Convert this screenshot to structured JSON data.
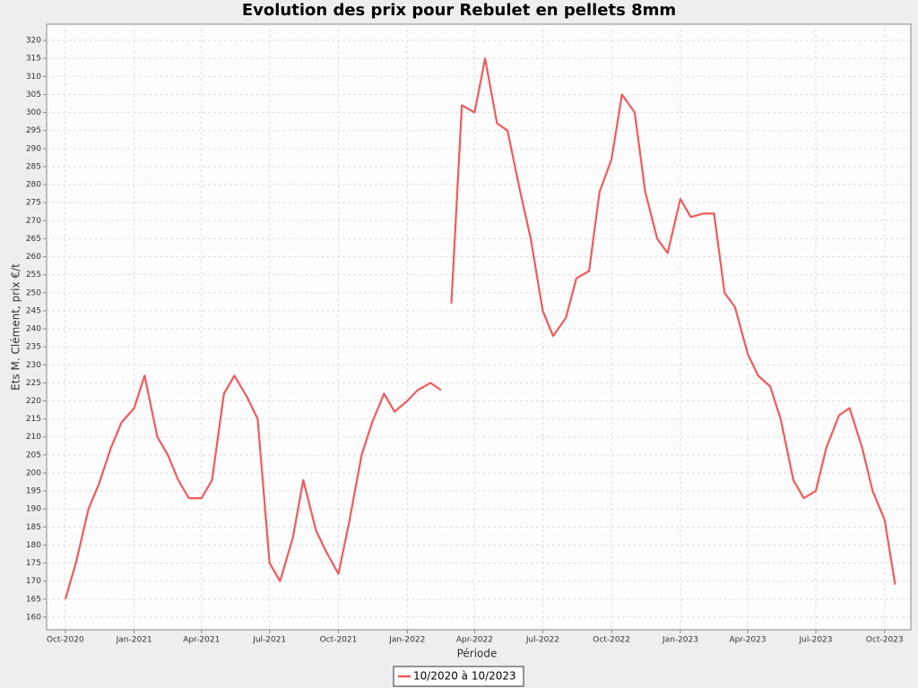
{
  "chart_data": {
    "type": "line",
    "title": "Evolution des prix pour Rebulet en pellets 8mm",
    "xlabel": "Période",
    "ylabel": "Ets M. Clément, prix €/t",
    "x": [
      "2020-10-01",
      "2020-10-15",
      "2020-11-01",
      "2020-11-15",
      "2020-12-01",
      "2020-12-15",
      "2021-01-01",
      "2021-01-15",
      "2021-02-01",
      "2021-02-15",
      "2021-03-01",
      "2021-03-15",
      "2021-04-01",
      "2021-04-15",
      "2021-05-01",
      "2021-05-15",
      "2021-06-01",
      "2021-06-15",
      "2021-07-01",
      "2021-07-15",
      "2021-08-01",
      "2021-08-15",
      "2021-09-01",
      "2021-09-15",
      "2021-10-01",
      "2021-10-15",
      "2021-11-01",
      "2021-11-15",
      "2021-12-01",
      "2021-12-15",
      "2022-01-01",
      "2022-01-15",
      "2022-02-01",
      "2022-02-15",
      "2022-02-22",
      "2022-03-01",
      "2022-03-15",
      "2022-04-01",
      "2022-04-15",
      "2022-05-01",
      "2022-05-15",
      "2022-06-01",
      "2022-06-15",
      "2022-07-01",
      "2022-07-15",
      "2022-08-01",
      "2022-08-15",
      "2022-09-01",
      "2022-09-15",
      "2022-10-01",
      "2022-10-15",
      "2022-11-01",
      "2022-11-15",
      "2022-12-01",
      "2022-12-15",
      "2023-01-01",
      "2023-01-15",
      "2023-02-01",
      "2023-02-15",
      "2023-03-01",
      "2023-03-15",
      "2023-04-01",
      "2023-04-15",
      "2023-05-01",
      "2023-05-15",
      "2023-06-01",
      "2023-06-15",
      "2023-07-01",
      "2023-07-15",
      "2023-08-01",
      "2023-08-15",
      "2023-09-01",
      "2023-09-15",
      "2023-10-01",
      "2023-10-15"
    ],
    "series": [
      {
        "name": "10/2020 à 10/2023",
        "color": "#f25a5a",
        "values": [
          165,
          175,
          190,
          197,
          207,
          214,
          218,
          227,
          210,
          205,
          198,
          193,
          193,
          198,
          222,
          227,
          221,
          215,
          175,
          170,
          182,
          198,
          184,
          178,
          172,
          186,
          205,
          214,
          222,
          217,
          220,
          223,
          225,
          223,
          null,
          247,
          302,
          300,
          315,
          297,
          295,
          278,
          265,
          245,
          238,
          243,
          254,
          256,
          278,
          287,
          305,
          300,
          278,
          265,
          261,
          276,
          271,
          272,
          272,
          250,
          246,
          233,
          227,
          224,
          215,
          198,
          193,
          195,
          207,
          216,
          218,
          207,
          195,
          187,
          169
        ]
      }
    ],
    "xlim": [
      "2020-09-06",
      "2023-11-05"
    ],
    "xticks": [
      {
        "value": "2020-10-01",
        "label": "Oct-2020"
      },
      {
        "value": "2021-01-01",
        "label": "Jan-2021"
      },
      {
        "value": "2021-04-01",
        "label": "Apr-2021"
      },
      {
        "value": "2021-07-01",
        "label": "Jul-2021"
      },
      {
        "value": "2021-10-01",
        "label": "Oct-2021"
      },
      {
        "value": "2022-01-01",
        "label": "Jan-2022"
      },
      {
        "value": "2022-04-01",
        "label": "Apr-2022"
      },
      {
        "value": "2022-07-01",
        "label": "Jul-2022"
      },
      {
        "value": "2022-10-01",
        "label": "Oct-2022"
      },
      {
        "value": "2023-01-01",
        "label": "Jan-2023"
      },
      {
        "value": "2023-04-01",
        "label": "Apr-2023"
      },
      {
        "value": "2023-07-01",
        "label": "Jul-2023"
      },
      {
        "value": "2023-10-01",
        "label": "Oct-2023"
      }
    ],
    "ylim": [
      156.5,
      324.5
    ],
    "yticks": [
      160,
      165,
      170,
      175,
      180,
      185,
      190,
      195,
      200,
      205,
      210,
      215,
      220,
      225,
      230,
      235,
      240,
      245,
      250,
      255,
      260,
      265,
      270,
      275,
      280,
      285,
      290,
      295,
      300,
      305,
      310,
      315,
      320
    ],
    "grid": true,
    "legend": "bottom"
  }
}
